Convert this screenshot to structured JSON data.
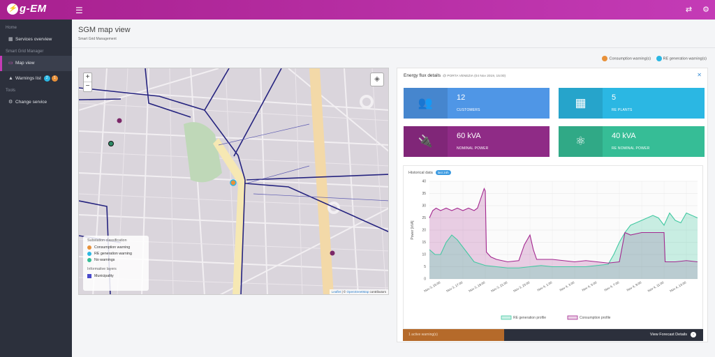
{
  "topbar": {
    "logo_text": "g-EM",
    "menu_icon": "hamburger-icon",
    "icons": [
      "refresh-icon",
      "settings-icon"
    ]
  },
  "sidebar": {
    "sections": [
      {
        "header": "Home",
        "items": [
          {
            "label": "Services overview",
            "icon": "grid-icon"
          }
        ]
      },
      {
        "header": "Smart Grid Manager",
        "items": [
          {
            "label": "Map view",
            "icon": "map-icon",
            "active": true
          },
          {
            "label": "Warnings list",
            "icon": "warning-icon",
            "badges": [
              "2",
              "1"
            ]
          }
        ]
      },
      {
        "header": "Tools",
        "items": [
          {
            "label": "Change service",
            "icon": "cogs-icon"
          }
        ]
      }
    ]
  },
  "page": {
    "title": "SGM map view",
    "subtitle": "Smart Grid Management"
  },
  "warnings_legend": {
    "consumption": "Consumption warning(s)",
    "re_generation": "RE generation warning(s)"
  },
  "map": {
    "zoom_in": "+",
    "zoom_out": "−",
    "legend": {
      "title": "Substation classification",
      "items": [
        "Consumption warning",
        "RE generation warning",
        "No warnings"
      ],
      "layers_title": "Informative layers",
      "layers": [
        "Municipality"
      ]
    },
    "attribution": {
      "leaflet": "Leaflet",
      "sep": " | © ",
      "osm": "OpenStreetMap",
      "suffix": " contributors"
    }
  },
  "panel": {
    "title": "Energy flux details",
    "meta": "@ PORTA VENEZIA (04 Nov 2019, 15:00)",
    "kpis": [
      {
        "value": "12",
        "label": "CUSTOMERS",
        "icon": "users-icon",
        "color": "#4f96e6"
      },
      {
        "value": "5",
        "label": "RE PLANTS",
        "icon": "solar-panel-icon",
        "color": "#2bb7e3"
      },
      {
        "value": "60 kVA",
        "label": "NOMINAL POWER",
        "icon": "plug-icon",
        "color": "#8f2b86"
      },
      {
        "value": "40 kVA",
        "label": "RE NOMINAL POWER",
        "icon": "hub-icon",
        "color": "#36bd96"
      }
    ],
    "footer": {
      "warnings": "1 active warning(s)",
      "link": "View Forecast Details"
    }
  },
  "chart_data": {
    "type": "area",
    "title": "Historical data",
    "badge": "last 24h",
    "ylabel": "Power [kVA]",
    "ylim": [
      0,
      40
    ],
    "yticks": [
      0,
      5,
      10,
      15,
      20,
      25,
      30,
      35,
      40
    ],
    "x_tick_labels": [
      "Nov 3, 15:00",
      "Nov 3, 17:00",
      "Nov 3, 19:00",
      "Nov 3, 21:00",
      "Nov 3, 23:00",
      "Nov 4, 1:00",
      "Nov 4, 3:00",
      "Nov 4, 5:00",
      "Nov 4, 7:00",
      "Nov 4, 9:00",
      "Nov 4, 11:00",
      "Nov 4, 13:00"
    ],
    "x_range": [
      0,
      24
    ],
    "series": [
      {
        "name": "RE generation profile",
        "color": "#43c9a2",
        "x": [
          0,
          0.5,
          1,
          1.5,
          2,
          2.5,
          3,
          3.5,
          4,
          5,
          6,
          7,
          8,
          9,
          10,
          11,
          12,
          13,
          14,
          15,
          16,
          16.5,
          17,
          17.5,
          18,
          18.5,
          19,
          19.5,
          20,
          20.5,
          21,
          21.5,
          22,
          22.5,
          23,
          23.5,
          24
        ],
        "y": [
          12,
          10,
          10,
          15,
          18,
          16,
          13,
          10,
          7,
          5.5,
          5,
          4.5,
          4.5,
          5,
          5.5,
          5,
          5,
          5,
          5,
          5.5,
          6,
          10,
          15,
          19,
          22,
          23,
          24,
          25,
          26,
          25,
          22,
          27,
          24,
          23,
          27,
          26,
          25
        ]
      },
      {
        "name": "Consumption profile",
        "color": "#a3278f",
        "x": [
          0,
          0.3,
          0.6,
          1,
          1.5,
          2,
          2.5,
          3,
          3.5,
          4,
          4.3,
          4.6,
          4.9,
          5.0,
          5.1,
          5.5,
          6,
          7,
          8,
          8.5,
          9,
          9.3,
          9.6,
          10,
          11,
          12,
          13,
          14,
          15,
          16,
          17,
          17.5,
          18,
          19,
          20,
          21,
          21.1,
          22,
          23,
          24
        ],
        "y": [
          25,
          28,
          29,
          28,
          29,
          28,
          29,
          28,
          29,
          28,
          29,
          33,
          37,
          36,
          11,
          9,
          8,
          7,
          7.5,
          14,
          18,
          12,
          8,
          8,
          8,
          7.5,
          7,
          7.5,
          7,
          6.5,
          7,
          19,
          18,
          19,
          19,
          19,
          7,
          7,
          7.5,
          7
        ]
      }
    ]
  }
}
